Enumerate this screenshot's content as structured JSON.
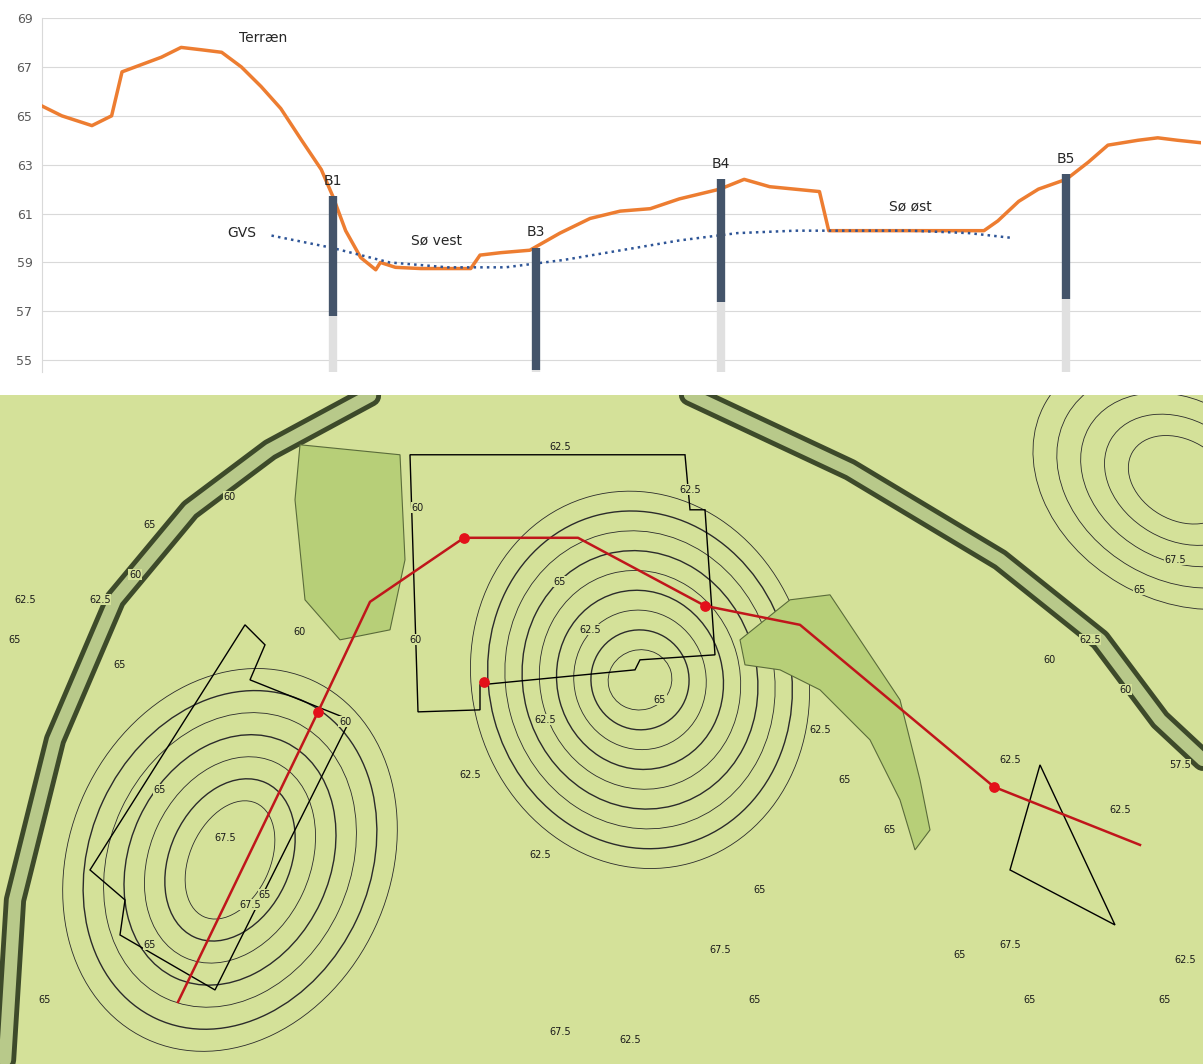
{
  "chart_data": {
    "type": "line",
    "xlim": [
      0,
      100
    ],
    "ylim": [
      54.5,
      69
    ],
    "yticks": [
      55,
      57,
      59,
      61,
      63,
      65,
      67,
      69
    ],
    "grid": true,
    "tick_labels": "y",
    "series": [
      {
        "name": "Terræn",
        "color": "#ed7d31",
        "line_style": "solid",
        "name_at": [
          17.0,
          67.9
        ],
        "x": [
          0,
          1.7,
          4.3,
          6.0,
          6.9,
          8.6,
          10.3,
          12.0,
          13.8,
          15.5,
          17.2,
          18.9,
          20.6,
          22.4,
          24.1,
          25.1,
          26.2,
          27.5,
          28.8,
          29.2,
          30.5,
          32.7,
          37.0,
          37.8,
          39.6,
          42.1,
          44.7,
          47.3,
          49.9,
          52.5,
          55.0,
          58.5,
          60.6,
          62.8,
          67.1,
          67.9,
          72.2,
          76.5,
          81.3,
          82.5,
          84.3,
          86.0,
          88.4,
          90.3,
          92.0,
          94.6,
          96.3,
          98.0,
          100
        ],
        "values": [
          65.4,
          65.0,
          64.6,
          65.0,
          66.8,
          67.1,
          67.4,
          67.8,
          67.7,
          67.6,
          67.0,
          66.2,
          65.3,
          64.0,
          62.8,
          61.7,
          60.3,
          59.2,
          58.7,
          59.0,
          58.8,
          58.75,
          58.75,
          59.3,
          59.4,
          59.5,
          60.2,
          60.8,
          61.1,
          61.2,
          61.6,
          62.0,
          62.4,
          62.1,
          61.9,
          60.3,
          60.3,
          60.3,
          60.3,
          60.7,
          61.5,
          62.0,
          62.4,
          63.1,
          63.8,
          64.0,
          64.1,
          64.0,
          63.9
        ]
      },
      {
        "name": "GVS",
        "color": "#2e5597",
        "line_style": "dotted",
        "name_at": [
          16.0,
          59.9
        ],
        "x": [
          19.8,
          25.0,
          30.0,
          35.0,
          40.0,
          45.0,
          50.0,
          55.0,
          60.0,
          65.0,
          70.0,
          75.0,
          80.0,
          83.8
        ],
        "values": [
          60.1,
          59.6,
          59.0,
          58.8,
          58.8,
          59.1,
          59.5,
          59.9,
          60.2,
          60.3,
          60.3,
          60.3,
          60.2,
          60.0
        ]
      }
    ],
    "boreholes": [
      {
        "name": "B1",
        "x": 25.1,
        "top": 61.7,
        "casing_bottom": 56.8,
        "bottom": 54.0
      },
      {
        "name": "B3",
        "x": 42.6,
        "top": 59.6,
        "casing_bottom": 54.6,
        "bottom": 54.0
      },
      {
        "name": "B4",
        "x": 58.6,
        "top": 62.4,
        "casing_bottom": 57.4,
        "bottom": 54.0
      },
      {
        "name": "B5",
        "x": 88.4,
        "top": 62.6,
        "casing_bottom": 57.5,
        "bottom": 54.0
      }
    ],
    "annotations": [
      {
        "text": "Sø vest",
        "x": 31.8,
        "y": 59.6
      },
      {
        "text": "Sø øst",
        "x": 73.1,
        "y": 61.0
      }
    ]
  },
  "map": {
    "contour_labels": [
      "57.5",
      "60",
      "62.5",
      "65",
      "67.5"
    ]
  }
}
